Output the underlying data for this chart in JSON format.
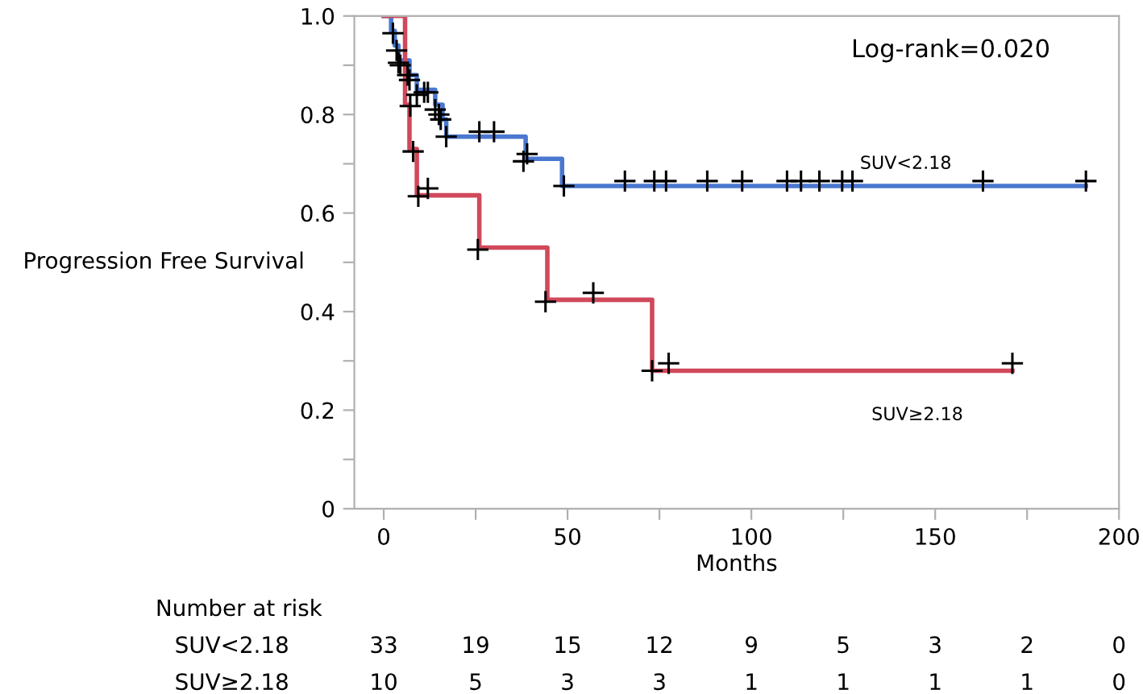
{
  "chart_data": {
    "type": "step",
    "xlabel": "Months",
    "ylabel": "Progression Free Survival",
    "xlim": [
      -8,
      200
    ],
    "xticks": [
      0,
      {
        "value": 25,
        "label": null
      },
      50,
      {
        "value": 75,
        "label": null
      },
      100,
      {
        "value": 125,
        "label": null
      },
      150,
      {
        "value": 175,
        "label": null
      },
      200
    ],
    "ylim": [
      0,
      1.0
    ],
    "yticks": [
      0,
      {
        "value": 0.1,
        "label": null
      },
      0.2,
      {
        "value": 0.3,
        "label": null
      },
      0.4,
      {
        "value": 0.5,
        "label": null
      },
      0.6,
      {
        "value": 0.7,
        "label": null
      },
      0.8,
      {
        "value": 0.9,
        "label": null
      },
      {
        "value": 1.0,
        "label": "1.0"
      }
    ],
    "grid": false,
    "legend": false,
    "series": [
      {
        "name": "SUV<2.18",
        "color": "#4a78d0",
        "x": [
          0,
          2,
          3,
          4,
          7,
          9,
          14,
          16,
          17,
          38.6,
          48.5,
          191
        ],
        "values": [
          1.0,
          0.97,
          0.94,
          0.91,
          0.88,
          0.85,
          0.82,
          0.79,
          0.755,
          0.71,
          0.655,
          0.655
        ]
      },
      {
        "name": "SUV≥2.18",
        "color": "#d0485a",
        "x": [
          0,
          5.8,
          7,
          9,
          26,
          44.5,
          73,
          171
        ],
        "values": [
          1.0,
          0.82,
          0.73,
          0.636,
          0.53,
          0.424,
          0.28,
          0.28
        ]
      },
      {
        "type": "scatter",
        "marker": "cross",
        "color": "#000000",
        "x": [
          2.5,
          3.5,
          4,
          4.5,
          6.5,
          7,
          9,
          11,
          12,
          14,
          15,
          15.5,
          17,
          26,
          30,
          38,
          39,
          49,
          65.6,
          73.6,
          76.8,
          88,
          97.5,
          109.7,
          113.5,
          118.5,
          124.7,
          127.5,
          163,
          191
        ],
        "values": [
          0.965,
          0.93,
          0.905,
          0.9,
          0.88,
          0.87,
          0.84,
          0.845,
          0.845,
          0.81,
          0.8,
          0.79,
          0.755,
          0.765,
          0.765,
          0.705,
          0.72,
          0.655,
          0.665,
          0.665,
          0.665,
          0.665,
          0.665,
          0.665,
          0.665,
          0.665,
          0.665,
          0.665,
          0.665,
          0.665
        ]
      },
      {
        "type": "scatter",
        "marker": "cross",
        "color": "#000000",
        "x": [
          7.2,
          8,
          9.4,
          12,
          25.6,
          44,
          57,
          73,
          77.5,
          171
        ],
        "values": [
          0.817,
          0.725,
          0.634,
          0.65,
          0.526,
          0.42,
          0.438,
          0.28,
          0.295,
          0.295
        ]
      }
    ],
    "annotations": [
      "Log-rank=0.020",
      "Number at risk",
      "SUV<2.18",
      "33",
      "19",
      "15",
      "12",
      "9",
      "5",
      "3",
      "2",
      "0",
      "SUV≥2.18",
      "10",
      "5",
      "3",
      "3",
      "1",
      "1",
      "1",
      "1",
      "0"
    ]
  }
}
